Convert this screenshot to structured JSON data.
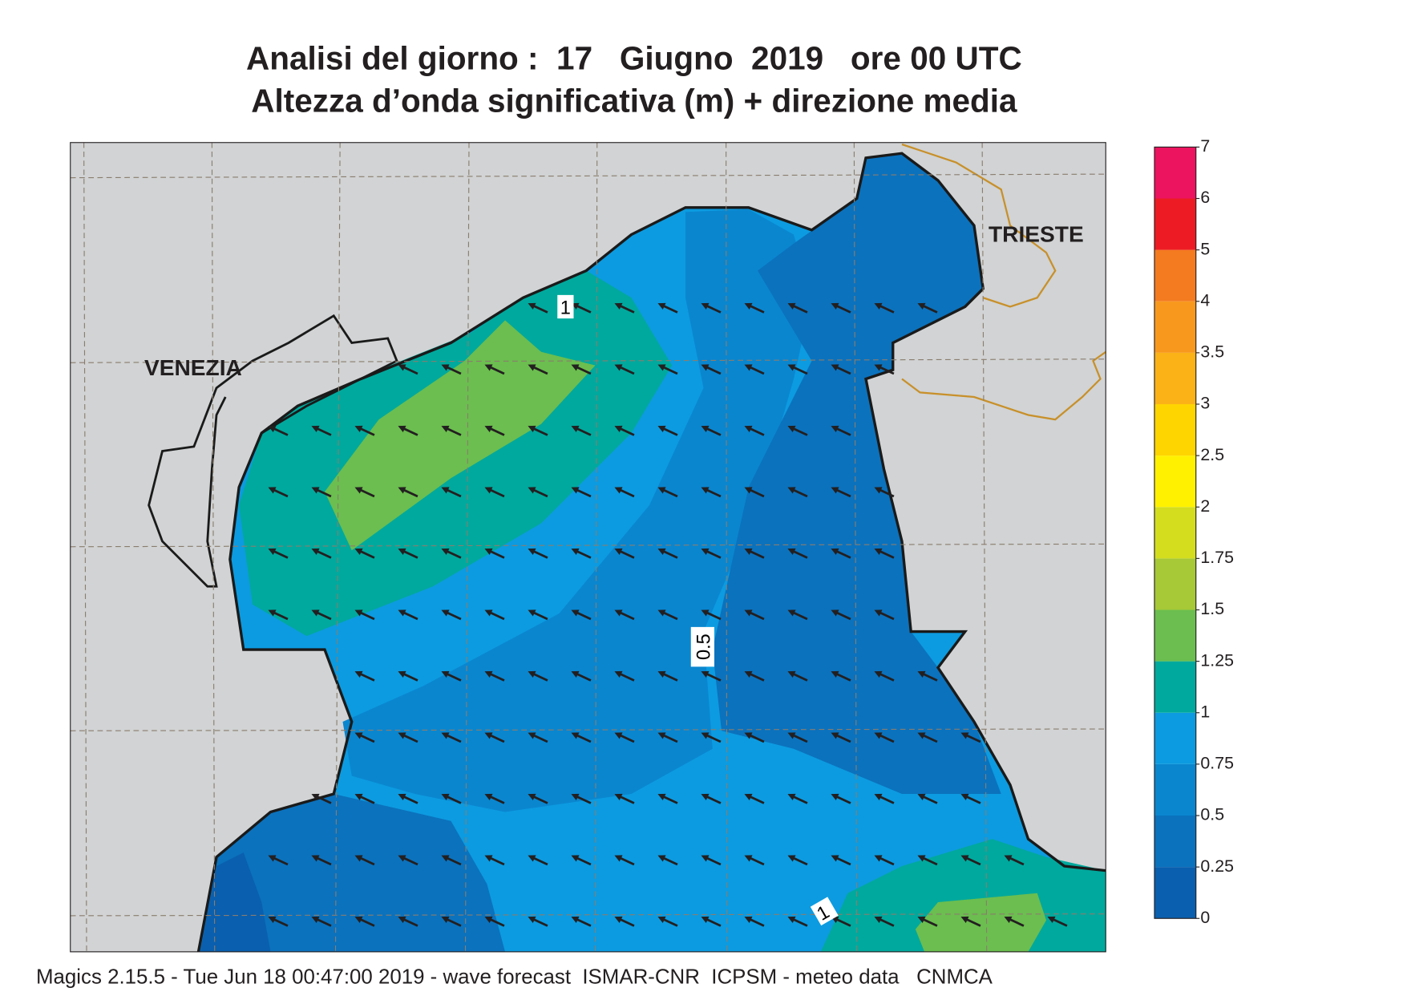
{
  "title": [
    "Analisi del giorno :  17   Giugno  2019   ore 00 UTC",
    "Altezza d’onda significativa (m) + direzione media"
  ],
  "map": {
    "place_labels": [
      "VENEZIA",
      "TRIESTE"
    ],
    "contour_labels": [
      1,
      0.5,
      1
    ]
  },
  "colorbar": {
    "ticks": [
      0,
      0.25,
      0.5,
      0.75,
      1,
      1.25,
      1.5,
      1.75,
      2,
      2.5,
      3,
      3.5,
      4,
      5,
      6,
      7
    ],
    "colors": [
      "#0a5fae",
      "#0b72bd",
      "#0a86cf",
      "#0c9be0",
      "#00a99d",
      "#6bbe4f",
      "#a7c837",
      "#d4de1f",
      "#fff100",
      "#ffd500",
      "#fbb217",
      "#f8991d",
      "#f47b20",
      "#ed1c24",
      "#ec145f"
    ]
  },
  "footer": "Magics 2.15.5 - Tue Jun 18 00:47:00 2019 - wave forecast  ISMAR-CNR  ICPSM - meteo data   CNMCA"
}
